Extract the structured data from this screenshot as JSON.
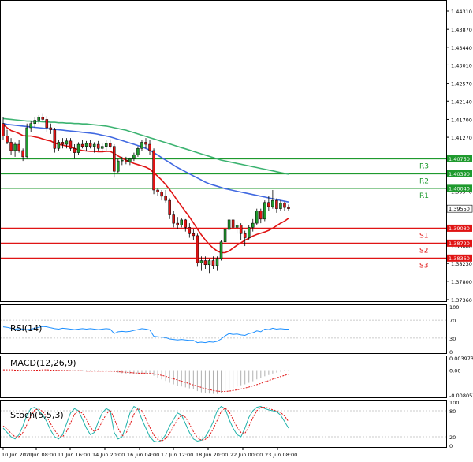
{
  "chart_data": [
    {
      "type": "candlestick",
      "panel": "price",
      "title": "",
      "y_ticks": [
        "1.44310",
        "1.43870",
        "1.43440",
        "1.43010",
        "1.42570",
        "1.42140",
        "1.41700",
        "1.41270",
        "1.40830",
        "1.40400",
        "1.39970",
        "1.39530",
        "1.39100",
        "1.38660",
        "1.38230",
        "1.37800",
        "1.37360"
      ],
      "ylim": [
        1.3736,
        1.4431
      ],
      "x_ticks": [
        "10 Jun 2021",
        "10 Jun 08:00",
        "11 Jun 16:00",
        "14 Jun 20:00",
        "16 Jun 04:00",
        "17 Jun 12:00",
        "18 Jun 20:00",
        "22 Jun 00:00",
        "23 Jun 08:00"
      ],
      "current_price": "1.39550",
      "levels": [
        {
          "label": "R3",
          "value": "1.40750",
          "color": "#1f9a2e"
        },
        {
          "label": "R2",
          "value": "1.40390",
          "color": "#1f9a2e"
        },
        {
          "label": "R1",
          "value": "1.40040",
          "color": "#1f9a2e"
        },
        {
          "label": "S1",
          "value": "1.39080",
          "color": "#e01414"
        },
        {
          "label": "S2",
          "value": "1.38720",
          "color": "#e01414"
        },
        {
          "label": "S3",
          "value": "1.38360",
          "color": "#e01414"
        }
      ],
      "candles": [
        {
          "o": 1.416,
          "h": 1.4175,
          "l": 1.412,
          "c": 1.413
        },
        {
          "o": 1.413,
          "h": 1.4145,
          "l": 1.411,
          "c": 1.4115
        },
        {
          "o": 1.4115,
          "h": 1.4125,
          "l": 1.4085,
          "c": 1.4095
        },
        {
          "o": 1.4095,
          "h": 1.4115,
          "l": 1.408,
          "c": 1.411
        },
        {
          "o": 1.411,
          "h": 1.412,
          "l": 1.409,
          "c": 1.4095
        },
        {
          "o": 1.4095,
          "h": 1.41,
          "l": 1.407,
          "c": 1.408
        },
        {
          "o": 1.408,
          "h": 1.416,
          "l": 1.4075,
          "c": 1.415
        },
        {
          "o": 1.415,
          "h": 1.4165,
          "l": 1.414,
          "c": 1.416
        },
        {
          "o": 1.416,
          "h": 1.4175,
          "l": 1.415,
          "c": 1.4168
        },
        {
          "o": 1.4168,
          "h": 1.418,
          "l": 1.416,
          "c": 1.4175
        },
        {
          "o": 1.4175,
          "h": 1.4185,
          "l": 1.4165,
          "c": 1.417
        },
        {
          "o": 1.417,
          "h": 1.4178,
          "l": 1.414,
          "c": 1.415
        },
        {
          "o": 1.415,
          "h": 1.416,
          "l": 1.4135,
          "c": 1.4145
        },
        {
          "o": 1.4145,
          "h": 1.415,
          "l": 1.409,
          "c": 1.41
        },
        {
          "o": 1.41,
          "h": 1.412,
          "l": 1.4095,
          "c": 1.4115
        },
        {
          "o": 1.4115,
          "h": 1.4125,
          "l": 1.41,
          "c": 1.411
        },
        {
          "o": 1.411,
          "h": 1.4125,
          "l": 1.41,
          "c": 1.4118
        },
        {
          "o": 1.4118,
          "h": 1.4125,
          "l": 1.4095,
          "c": 1.41
        },
        {
          "o": 1.41,
          "h": 1.411,
          "l": 1.4075,
          "c": 1.409
        },
        {
          "o": 1.409,
          "h": 1.4115,
          "l": 1.4085,
          "c": 1.411
        },
        {
          "o": 1.411,
          "h": 1.412,
          "l": 1.41,
          "c": 1.4105
        },
        {
          "o": 1.4105,
          "h": 1.4118,
          "l": 1.4095,
          "c": 1.4112
        },
        {
          "o": 1.4112,
          "h": 1.412,
          "l": 1.41,
          "c": 1.4105
        },
        {
          "o": 1.4105,
          "h": 1.4115,
          "l": 1.409,
          "c": 1.411
        },
        {
          "o": 1.411,
          "h": 1.4118,
          "l": 1.4095,
          "c": 1.41
        },
        {
          "o": 1.41,
          "h": 1.4112,
          "l": 1.409,
          "c": 1.4105
        },
        {
          "o": 1.4105,
          "h": 1.412,
          "l": 1.4095,
          "c": 1.4112
        },
        {
          "o": 1.4112,
          "h": 1.4122,
          "l": 1.41,
          "c": 1.4105
        },
        {
          "o": 1.4105,
          "h": 1.411,
          "l": 1.403,
          "c": 1.4045
        },
        {
          "o": 1.4045,
          "h": 1.4075,
          "l": 1.404,
          "c": 1.407
        },
        {
          "o": 1.407,
          "h": 1.408,
          "l": 1.406,
          "c": 1.4072
        },
        {
          "o": 1.4072,
          "h": 1.408,
          "l": 1.4062,
          "c": 1.4068
        },
        {
          "o": 1.4068,
          "h": 1.4078,
          "l": 1.406,
          "c": 1.4075
        },
        {
          "o": 1.4075,
          "h": 1.409,
          "l": 1.407,
          "c": 1.4085
        },
        {
          "o": 1.4085,
          "h": 1.4105,
          "l": 1.408,
          "c": 1.41
        },
        {
          "o": 1.41,
          "h": 1.412,
          "l": 1.4095,
          "c": 1.4115
        },
        {
          "o": 1.4115,
          "h": 1.4125,
          "l": 1.41,
          "c": 1.411
        },
        {
          "o": 1.411,
          "h": 1.412,
          "l": 1.4085,
          "c": 1.4095
        },
        {
          "o": 1.4095,
          "h": 1.41,
          "l": 1.399,
          "c": 1.4
        },
        {
          "o": 1.4,
          "h": 1.4005,
          "l": 1.3985,
          "c": 1.3995
        },
        {
          "o": 1.3995,
          "h": 1.4,
          "l": 1.3975,
          "c": 1.3985
        },
        {
          "o": 1.3985,
          "h": 1.4,
          "l": 1.397,
          "c": 1.3975
        },
        {
          "o": 1.3975,
          "h": 1.398,
          "l": 1.393,
          "c": 1.394
        },
        {
          "o": 1.394,
          "h": 1.395,
          "l": 1.391,
          "c": 1.392
        },
        {
          "o": 1.392,
          "h": 1.3935,
          "l": 1.3905,
          "c": 1.3915
        },
        {
          "o": 1.3915,
          "h": 1.3932,
          "l": 1.391,
          "c": 1.3928
        },
        {
          "o": 1.3928,
          "h": 1.393,
          "l": 1.39,
          "c": 1.391
        },
        {
          "o": 1.391,
          "h": 1.392,
          "l": 1.3885,
          "c": 1.3895
        },
        {
          "o": 1.3895,
          "h": 1.3905,
          "l": 1.388,
          "c": 1.389
        },
        {
          "o": 1.389,
          "h": 1.3895,
          "l": 1.3815,
          "c": 1.3825
        },
        {
          "o": 1.3825,
          "h": 1.384,
          "l": 1.3805,
          "c": 1.383
        },
        {
          "o": 1.383,
          "h": 1.384,
          "l": 1.381,
          "c": 1.382
        },
        {
          "o": 1.382,
          "h": 1.3835,
          "l": 1.38,
          "c": 1.383
        },
        {
          "o": 1.383,
          "h": 1.384,
          "l": 1.381,
          "c": 1.3818
        },
        {
          "o": 1.3818,
          "h": 1.384,
          "l": 1.3805,
          "c": 1.3835
        },
        {
          "o": 1.3835,
          "h": 1.388,
          "l": 1.383,
          "c": 1.3875
        },
        {
          "o": 1.3875,
          "h": 1.3915,
          "l": 1.387,
          "c": 1.3905
        },
        {
          "o": 1.3905,
          "h": 1.3935,
          "l": 1.389,
          "c": 1.3928
        },
        {
          "o": 1.3928,
          "h": 1.3932,
          "l": 1.3895,
          "c": 1.391
        },
        {
          "o": 1.391,
          "h": 1.3925,
          "l": 1.3895,
          "c": 1.3915
        },
        {
          "o": 1.3915,
          "h": 1.392,
          "l": 1.388,
          "c": 1.3895
        },
        {
          "o": 1.3895,
          "h": 1.3902,
          "l": 1.3865,
          "c": 1.3885
        },
        {
          "o": 1.3885,
          "h": 1.3915,
          "l": 1.388,
          "c": 1.391
        },
        {
          "o": 1.391,
          "h": 1.393,
          "l": 1.39,
          "c": 1.392
        },
        {
          "o": 1.392,
          "h": 1.3955,
          "l": 1.3915,
          "c": 1.395
        },
        {
          "o": 1.395,
          "h": 1.3955,
          "l": 1.392,
          "c": 1.393
        },
        {
          "o": 1.393,
          "h": 1.3975,
          "l": 1.3925,
          "c": 1.397
        },
        {
          "o": 1.397,
          "h": 1.3985,
          "l": 1.395,
          "c": 1.396
        },
        {
          "o": 1.396,
          "h": 1.4,
          "l": 1.3955,
          "c": 1.3975
        },
        {
          "o": 1.3975,
          "h": 1.398,
          "l": 1.3945,
          "c": 1.3955
        },
        {
          "o": 1.3955,
          "h": 1.3975,
          "l": 1.395,
          "c": 1.3968
        },
        {
          "o": 1.3968,
          "h": 1.3972,
          "l": 1.395,
          "c": 1.3958
        },
        {
          "o": 1.3958,
          "h": 1.3965,
          "l": 1.395,
          "c": 1.3955
        }
      ],
      "ma_red": [
        1.4158,
        1.415,
        1.4143,
        1.414,
        1.4136,
        1.4131,
        1.413,
        1.413,
        1.4128,
        1.4126,
        1.4123,
        1.412,
        1.4118,
        1.4113,
        1.411,
        1.4108,
        1.4106,
        1.4104,
        1.41,
        1.4097,
        1.4095,
        1.4094,
        1.4093,
        1.4093,
        1.4092,
        1.4092,
        1.4093,
        1.4093,
        1.4088,
        1.4082,
        1.4077,
        1.4072,
        1.4068,
        1.4064,
        1.4061,
        1.4058,
        1.4055,
        1.405,
        1.4042,
        1.4033,
        1.4024,
        1.4013,
        1.4001,
        1.3988,
        1.3974,
        1.3961,
        1.3948,
        1.3935,
        1.3921,
        1.3906,
        1.3892,
        1.388,
        1.3869,
        1.386,
        1.3853,
        1.3849,
        1.3849,
        1.3853,
        1.386,
        1.3867,
        1.3873,
        1.3879,
        1.3884,
        1.3889,
        1.3893,
        1.3896,
        1.3899,
        1.3903,
        1.3908,
        1.3914,
        1.392,
        1.3925,
        1.3932
      ],
      "ma_blue": [
        1.416,
        1.4158,
        1.4157,
        1.4156,
        1.4155,
        1.4154,
        1.4153,
        1.4152,
        1.4151,
        1.415,
        1.4149,
        1.4148,
        1.4147,
        1.4146,
        1.4145,
        1.4144,
        1.4143,
        1.4142,
        1.4141,
        1.414,
        1.4139,
        1.4138,
        1.4137,
        1.4136,
        1.4134,
        1.4132,
        1.413,
        1.4128,
        1.4125,
        1.4122,
        1.4119,
        1.4116,
        1.4113,
        1.411,
        1.4107,
        1.4104,
        1.41,
        1.4096,
        1.409,
        1.4084,
        1.4078,
        1.4072,
        1.4066,
        1.406,
        1.4054,
        1.4049,
        1.4044,
        1.4039,
        1.4034,
        1.4029,
        1.4024,
        1.4019,
        1.4015,
        1.4012,
        1.4009,
        1.4006,
        1.4003,
        1.4001,
        1.3999,
        1.3997,
        1.3995,
        1.3993,
        1.3991,
        1.3989,
        1.3987,
        1.3985,
        1.3983,
        1.3981,
        1.3979,
        1.3977,
        1.3975,
        1.3973,
        1.3971
      ],
      "ma_green": [
        1.4172,
        1.4171,
        1.417,
        1.4169,
        1.4168,
        1.4167,
        1.4166,
        1.4166,
        1.4165,
        1.4165,
        1.4164,
        1.4164,
        1.4163,
        1.4163,
        1.4162,
        1.4162,
        1.4161,
        1.4161,
        1.416,
        1.416,
        1.4159,
        1.4159,
        1.4158,
        1.4157,
        1.4156,
        1.4155,
        1.4154,
        1.4152,
        1.415,
        1.4148,
        1.4146,
        1.4144,
        1.4141,
        1.4138,
        1.4135,
        1.4132,
        1.4129,
        1.4126,
        1.4123,
        1.412,
        1.4117,
        1.4114,
        1.4111,
        1.4108,
        1.4105,
        1.4102,
        1.4099,
        1.4096,
        1.4093,
        1.409,
        1.4087,
        1.4084,
        1.4081,
        1.4078,
        1.4075,
        1.4072,
        1.407,
        1.4068,
        1.4066,
        1.4064,
        1.4062,
        1.406,
        1.4058,
        1.4056,
        1.4054,
        1.4052,
        1.405,
        1.4048,
        1.4046,
        1.4044,
        1.4042,
        1.404,
        1.4038
      ]
    },
    {
      "type": "line",
      "panel": "rsi",
      "label": "RSI(14)",
      "y_ticks": [
        "100",
        "70",
        "30",
        "0"
      ],
      "ylim": [
        0,
        100
      ],
      "values": [
        55,
        54,
        52,
        50,
        51,
        50,
        49,
        50,
        52,
        54,
        56,
        55,
        53,
        51,
        50,
        52,
        51,
        50,
        49,
        50,
        51,
        50,
        51,
        50,
        49,
        50,
        51,
        50,
        40,
        44,
        45,
        44,
        45,
        47,
        49,
        51,
        50,
        48,
        34,
        33,
        32,
        31,
        28,
        27,
        26,
        27,
        26,
        25,
        25,
        20,
        21,
        20,
        22,
        21,
        23,
        28,
        35,
        40,
        38,
        39,
        37,
        36,
        40,
        42,
        46,
        44,
        50,
        49,
        52,
        50,
        51,
        50,
        50
      ]
    },
    {
      "type": "bar",
      "panel": "macd",
      "label": "MACD(12,26,9)",
      "y_ticks": [
        "0.003973",
        "0.00",
        "-0.008057"
      ],
      "ylim": [
        -0.008057,
        0.003973
      ],
      "values": [
        0.0002,
        0.0001,
        0,
        -0.0001,
        -0.0001,
        -0.0002,
        -0.0001,
        0,
        0.0001,
        0.0001,
        0.0002,
        0.0001,
        0,
        -0.0001,
        -0.0002,
        -0.0002,
        -0.0002,
        -0.0002,
        -0.0003,
        -0.0003,
        -0.0003,
        -0.0003,
        -0.0003,
        -0.0003,
        -0.0003,
        -0.0003,
        -0.0003,
        -0.0003,
        -0.0006,
        -0.0008,
        -0.001,
        -0.0011,
        -0.0012,
        -0.0012,
        -0.0012,
        -0.0011,
        -0.0011,
        -0.0012,
        -0.0018,
        -0.0024,
        -0.003,
        -0.0035,
        -0.0041,
        -0.0046,
        -0.005,
        -0.0053,
        -0.0056,
        -0.0059,
        -0.0062,
        -0.0068,
        -0.0072,
        -0.0075,
        -0.0076,
        -0.0077,
        -0.0077,
        -0.0074,
        -0.0069,
        -0.0063,
        -0.0058,
        -0.0053,
        -0.0049,
        -0.0046,
        -0.0041,
        -0.0036,
        -0.003,
        -0.0026,
        -0.002,
        -0.0016,
        -0.0011,
        -0.0008,
        -0.0005,
        -0.0003,
        -0.0001
      ],
      "signal": [
        0.0001,
        0.0001,
        0.0001,
        0,
        0,
        -0.0001,
        -0.0001,
        -0.0001,
        0,
        0,
        0.0001,
        0.0001,
        0,
        0,
        -0.0001,
        -0.0001,
        -0.0001,
        -0.0002,
        -0.0002,
        -0.0002,
        -0.0002,
        -0.0003,
        -0.0003,
        -0.0003,
        -0.0003,
        -0.0003,
        -0.0003,
        -0.0003,
        -0.0004,
        -0.0005,
        -0.0006,
        -0.0007,
        -0.0008,
        -0.0009,
        -0.001,
        -0.001,
        -0.001,
        -0.0011,
        -0.0012,
        -0.0014,
        -0.0017,
        -0.002,
        -0.0024,
        -0.0028,
        -0.0032,
        -0.0036,
        -0.004,
        -0.0044,
        -0.0048,
        -0.0052,
        -0.0056,
        -0.006,
        -0.0063,
        -0.0066,
        -0.0068,
        -0.0069,
        -0.0069,
        -0.0068,
        -0.0066,
        -0.0064,
        -0.0061,
        -0.0058,
        -0.0055,
        -0.0051,
        -0.0047,
        -0.0043,
        -0.0038,
        -0.0034,
        -0.0029,
        -0.0025,
        -0.0021,
        -0.0017,
        -0.0013
      ]
    },
    {
      "type": "line",
      "panel": "stoch",
      "label": "Stoch(5,5,3)",
      "y_ticks": [
        "100",
        "80",
        "20",
        "0"
      ],
      "ylim": [
        0,
        100
      ],
      "main": [
        40,
        30,
        20,
        15,
        25,
        45,
        70,
        85,
        88,
        80,
        70,
        55,
        35,
        20,
        15,
        25,
        50,
        75,
        85,
        80,
        60,
        40,
        25,
        30,
        55,
        75,
        85,
        80,
        30,
        15,
        20,
        45,
        75,
        90,
        85,
        60,
        40,
        20,
        10,
        8,
        12,
        25,
        45,
        60,
        75,
        70,
        50,
        30,
        15,
        10,
        12,
        20,
        35,
        55,
        80,
        90,
        85,
        60,
        40,
        25,
        20,
        40,
        65,
        80,
        88,
        90,
        85,
        82,
        80,
        78,
        70,
        55,
        40
      ],
      "signal": [
        45,
        38,
        28,
        20,
        20,
        30,
        48,
        68,
        82,
        84,
        78,
        66,
        50,
        35,
        22,
        20,
        32,
        52,
        72,
        80,
        74,
        60,
        42,
        32,
        38,
        55,
        72,
        82,
        62,
        40,
        22,
        28,
        48,
        72,
        85,
        80,
        62,
        42,
        24,
        14,
        10,
        16,
        28,
        44,
        60,
        70,
        65,
        50,
        32,
        18,
        12,
        14,
        22,
        38,
        58,
        78,
        86,
        78,
        60,
        42,
        30,
        28,
        44,
        64,
        80,
        88,
        88,
        86,
        82,
        80,
        76,
        68,
        55
      ]
    }
  ]
}
